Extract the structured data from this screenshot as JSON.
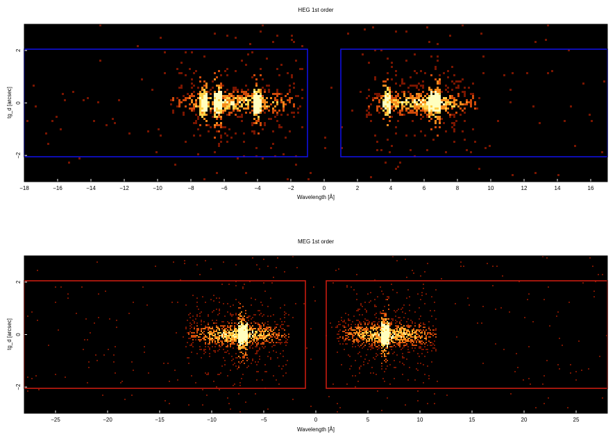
{
  "chart_data": [
    {
      "type": "heatmap",
      "title": "HEG 1st order",
      "xlabel": "Wavelength [Å]",
      "ylabel": "tg_d [arcsec]",
      "xlim": [
        -18,
        17
      ],
      "ylim": [
        -3,
        3
      ],
      "x_ticks": [
        -18,
        -16,
        -14,
        -12,
        -10,
        -8,
        -6,
        -4,
        -2,
        0,
        2,
        4,
        6,
        8,
        10,
        12,
        14,
        16
      ],
      "x_tick_labels": [
        "−18",
        "−16",
        "−14",
        "−12",
        "−10",
        "−8",
        "−6",
        "−4",
        "−2",
        "0",
        "2",
        "4",
        "6",
        "8",
        "10",
        "12",
        "14",
        "16"
      ],
      "y_ticks": [
        -2,
        0,
        2
      ],
      "y_tick_labels": [
        "−2",
        "0",
        "2"
      ],
      "colormap": [
        "#000000",
        "#7a1500",
        "#d04a0a",
        "#f58a1c",
        "#ffd24a",
        "#ffffbf"
      ],
      "extraction_region_color": "#1010e0",
      "extraction_regions": [
        {
          "xmin": -18,
          "xmax": -1,
          "ymin": -2.05,
          "ymax": 2.05
        },
        {
          "xmin": 1,
          "xmax": 17,
          "ymin": -2.05,
          "ymax": 2.05
        }
      ],
      "source_bands": [
        {
          "xmin": -9.3,
          "xmax": -1.3,
          "peaks": [
            -7.2,
            -6.4,
            -4.0
          ]
        },
        {
          "xmin": 2.5,
          "xmax": 9.4,
          "peaks": [
            6.5,
            6.8,
            3.8
          ]
        }
      ],
      "background": "#000000"
    },
    {
      "type": "heatmap",
      "title": "MEG 1st order",
      "xlabel": "Wavelength [Å]",
      "ylabel": "tg_d [arcsec]",
      "xlim": [
        -28,
        28
      ],
      "ylim": [
        -3,
        3
      ],
      "x_ticks": [
        -25,
        -20,
        -15,
        -10,
        -5,
        0,
        5,
        10,
        15,
        20,
        25
      ],
      "x_tick_labels": [
        "−25",
        "−20",
        "−15",
        "−10",
        "−5",
        "0",
        "5",
        "10",
        "15",
        "20",
        "25"
      ],
      "y_ticks": [
        -2,
        0,
        2
      ],
      "y_tick_labels": [
        "−2",
        "0",
        "2"
      ],
      "colormap": [
        "#000000",
        "#7a1500",
        "#d04a0a",
        "#f58a1c",
        "#ffd24a",
        "#ffffbf"
      ],
      "extraction_region_color": "#c81c10",
      "extraction_regions": [
        {
          "xmin": -28,
          "xmax": -1,
          "ymin": -2.05,
          "ymax": 2.05
        },
        {
          "xmin": 1,
          "xmax": 28,
          "ymin": -2.05,
          "ymax": 2.05
        }
      ],
      "source_bands": [
        {
          "xmin": -12.5,
          "xmax": -2.5,
          "peaks": [
            -6.8,
            -7.2
          ]
        },
        {
          "xmin": 2.0,
          "xmax": 11.8,
          "peaks": [
            6.5,
            6.8
          ]
        }
      ],
      "background": "#000000"
    }
  ]
}
